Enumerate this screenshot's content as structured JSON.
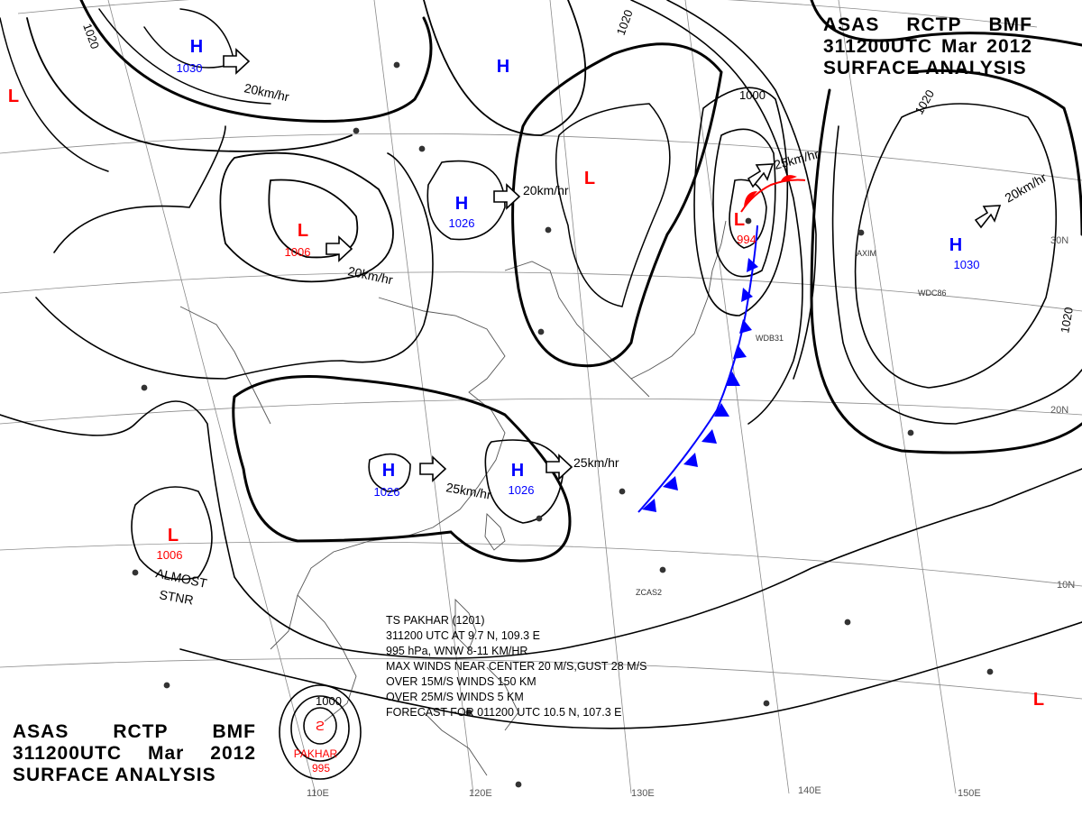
{
  "title": {
    "center": "ASAS",
    "office": "RCTP",
    "agency": "BMF",
    "datetime": "311200UTC",
    "month": "Mar",
    "year": "2012",
    "product": "SURFACE ANALYSIS"
  },
  "pressure_centers": [
    {
      "type": "H",
      "value": "1030"
    },
    {
      "type": "H",
      "value": ""
    },
    {
      "type": "H",
      "value": "1026"
    },
    {
      "type": "H",
      "value": "1026"
    },
    {
      "type": "H",
      "value": "1026"
    },
    {
      "type": "H",
      "value": "1030"
    },
    {
      "type": "L",
      "value": ""
    },
    {
      "type": "L",
      "value": "1006"
    },
    {
      "type": "L",
      "value": "1006"
    },
    {
      "type": "L",
      "value": ""
    },
    {
      "type": "L",
      "value": "994"
    },
    {
      "type": "L",
      "value": ""
    }
  ],
  "isobar_labels": [
    "1020",
    "1020",
    "1000",
    "1020",
    "1020",
    "1000"
  ],
  "motion_labels": [
    "20km/hr",
    "20km/hr",
    "20km/hr",
    "25km/hr",
    "25km/hr",
    "25km/hr",
    "20km/hr"
  ],
  "annotations": {
    "almost_stationary_1": "ALMOST",
    "almost_stationary_2": "STNR"
  },
  "tropical_storm": {
    "name": "PAKHAR",
    "pressure": "995",
    "isobar": "1000",
    "bulletin": [
      "TS  PAKHAR  (1201)",
      "311200 UTC  AT 9.7 N, 109.3 E",
      "995 hPa, WNW  8-11 KM/HR",
      "MAX WINDS NEAR CENTER 20 M/S,GUST 28 M/S",
      "OVER 15M/S WINDS  150 KM",
      "OVER 25M/S WINDS  5 KM",
      "FORECAST FOR 011200 UTC 10.5 N, 107.3 E"
    ]
  },
  "grid_labels": {
    "lon": [
      "110E",
      "120E",
      "130E",
      "140E",
      "150E"
    ],
    "lat": [
      "30N",
      "20N",
      "10N"
    ]
  },
  "station_codes": [
    "WDB31",
    "WDC86",
    "ZCAS2",
    "AXIM"
  ],
  "colors": {
    "high": "#0000ff",
    "low": "#ff0000",
    "cold_front": "#0000ff",
    "warm_front": "#ff0000",
    "isobar": "#000000",
    "coast": "#555555"
  }
}
